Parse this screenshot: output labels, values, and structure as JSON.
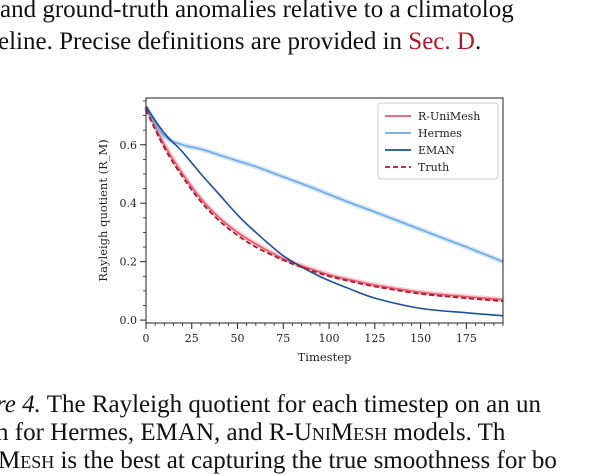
{
  "intro": {
    "line1": "and ground-truth anomalies relative to a climatolog",
    "line2_text": "eline. Precise definitions are provided in ",
    "line2_ref": "Sec. D",
    "line2_end": "."
  },
  "caption": {
    "line1_italic": "re 4.",
    "line1_text": " The Rayleigh quotient for each timestep on an un",
    "line2_text": "n for Hermes, EMAN, and R-",
    "line2_sc": "UniMesh",
    "line2_end": " models.  Th",
    "line3_sc": "Mesh",
    "line3_text": " is the best at capturing the true smoothness for bo"
  },
  "chart_data": {
    "type": "line",
    "xlabel": "Timestep",
    "ylabel": "Rayleigh quotient (R_M)",
    "xlim": [
      0,
      195
    ],
    "ylim": [
      -0.01,
      0.76
    ],
    "xticks": [
      0,
      25,
      50,
      75,
      100,
      125,
      150,
      175
    ],
    "yticks": [
      0.0,
      0.2,
      0.4,
      0.6
    ],
    "ytick_labels": [
      "0.0",
      "0.2",
      "0.4",
      "0.6"
    ],
    "grid": false,
    "legend_position": "top-right",
    "series": [
      {
        "name": "R-UniMesh",
        "color": "#e8586f",
        "style": "solid",
        "x": [
          0,
          10,
          20,
          30,
          40,
          50,
          60,
          75,
          90,
          100,
          110,
          125,
          150,
          175,
          195
        ],
        "y": [
          0.73,
          0.6,
          0.5,
          0.415,
          0.35,
          0.3,
          0.26,
          0.21,
          0.175,
          0.155,
          0.14,
          0.12,
          0.095,
          0.08,
          0.07
        ]
      },
      {
        "name": "Hermes",
        "color": "#6aa8e6",
        "style": "solid",
        "x": [
          0,
          10,
          20,
          30,
          40,
          50,
          60,
          75,
          90,
          100,
          110,
          125,
          150,
          175,
          195
        ],
        "y": [
          0.73,
          0.63,
          0.6,
          0.585,
          0.565,
          0.545,
          0.525,
          0.49,
          0.455,
          0.43,
          0.405,
          0.37,
          0.31,
          0.25,
          0.2
        ]
      },
      {
        "name": "EMAN",
        "color": "#1a4f9c",
        "style": "solid",
        "x": [
          0,
          10,
          20,
          30,
          40,
          50,
          60,
          75,
          90,
          100,
          110,
          125,
          150,
          175,
          195
        ],
        "y": [
          0.73,
          0.64,
          0.575,
          0.5,
          0.43,
          0.36,
          0.3,
          0.22,
          0.165,
          0.135,
          0.11,
          0.075,
          0.04,
          0.025,
          0.015
        ]
      },
      {
        "name": "Truth",
        "color": "#a31d2a",
        "style": "dashed",
        "x": [
          0,
          10,
          20,
          30,
          40,
          50,
          60,
          75,
          90,
          100,
          110,
          125,
          150,
          175,
          195
        ],
        "y": [
          0.72,
          0.59,
          0.49,
          0.405,
          0.34,
          0.29,
          0.25,
          0.205,
          0.17,
          0.15,
          0.135,
          0.115,
          0.09,
          0.075,
          0.065
        ]
      }
    ]
  }
}
